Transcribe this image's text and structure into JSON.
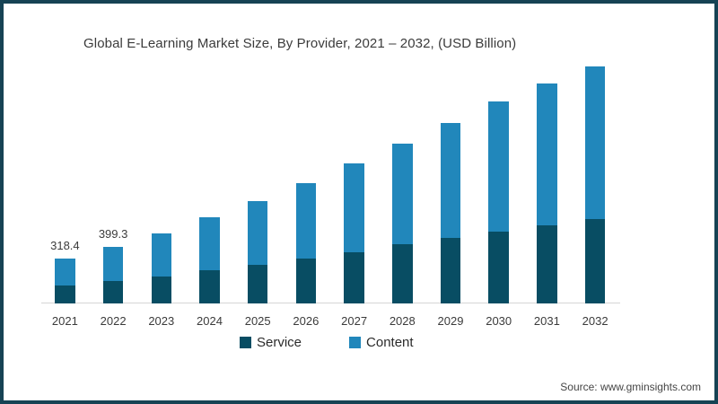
{
  "frame": {
    "border_color": "#164354",
    "background": "#ffffff"
  },
  "source_text": "Source: www.gminsights.com",
  "chart_data": {
    "type": "bar",
    "stacked": true,
    "title": "Global E-Learning Market Size, By Provider, 2021 – 2032, (USD Billion)",
    "unit": "USD Billion",
    "categories": [
      "2021",
      "2022",
      "2023",
      "2024",
      "2025",
      "2026",
      "2027",
      "2028",
      "2029",
      "2030",
      "2031",
      "2032"
    ],
    "series": [
      {
        "name": "Service",
        "color": "#084d63",
        "values": [
          126.0,
          157.0,
          186,
          232,
          268,
          318,
          363,
          418,
          464,
          509,
          553,
          596
        ]
      },
      {
        "name": "Content",
        "color": "#2187bb",
        "values": [
          192.4,
          242.3,
          310,
          375,
          455,
          533,
          627,
          715,
          812,
          918,
          1005,
          1083
        ]
      }
    ],
    "totals": [
      318.4,
      399.3,
      496,
      607,
      723,
      851,
      990,
      1133,
      1276,
      1427,
      1558,
      1679
    ],
    "data_labels": {
      "2021": "318.4",
      "2022": "399.3"
    },
    "ylim": [
      0,
      1750
    ],
    "grid": false,
    "y_axis_visible": false,
    "legend_position": "bottom",
    "axis_line_color": "#d6d6d6",
    "text_color": "#3b3b3b"
  }
}
